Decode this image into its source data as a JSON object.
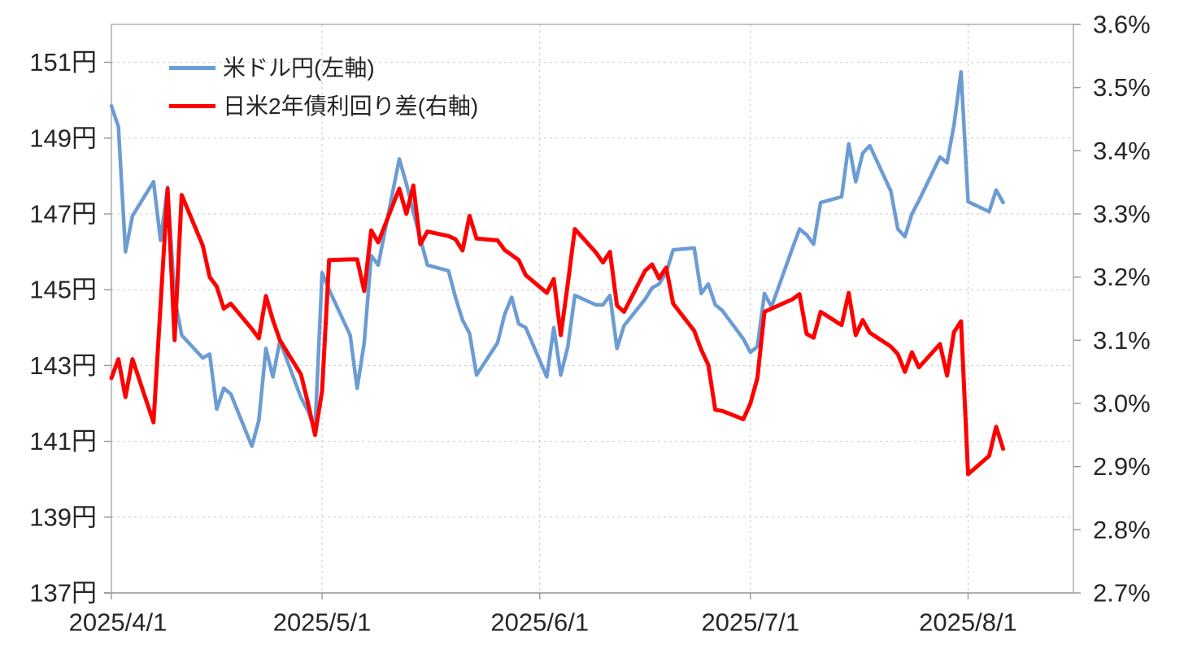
{
  "chart_data": {
    "type": "line",
    "title": "",
    "grid": true,
    "legend_position": "top-left-inside",
    "x_axis": {
      "tick_labels": [
        "2025/4/1",
        "2025/5/1",
        "2025/6/1",
        "2025/7/1",
        "2025/8/1"
      ],
      "tick_days": [
        0,
        30,
        61,
        91,
        122
      ],
      "total_days": 137,
      "base_date": "2025/4/1"
    },
    "left_axis": {
      "unit": "円",
      "tick_labels": [
        "151円",
        "149円",
        "147円",
        "145円",
        "143円",
        "141円",
        "139円",
        "137円"
      ],
      "tick_values": [
        151,
        149,
        147,
        145,
        143,
        141,
        139,
        137
      ],
      "min": 137,
      "max": 152
    },
    "right_axis": {
      "unit": "%",
      "tick_labels": [
        "3.6%",
        "3.5%",
        "3.4%",
        "3.3%",
        "3.2%",
        "3.1%",
        "3.0%",
        "2.9%",
        "2.8%",
        "2.7%"
      ],
      "tick_values": [
        3.6,
        3.5,
        3.4,
        3.3,
        3.2,
        3.1,
        3.0,
        2.9,
        2.8,
        2.7
      ],
      "min": 2.7,
      "max": 3.6
    },
    "series": [
      {
        "name": "米ドル円(左軸)",
        "axis": "left",
        "color": "#6B9CD3",
        "width": 4.5,
        "points": [
          [
            "4/1",
            149.85
          ],
          [
            "4/2",
            149.3
          ],
          [
            "4/3",
            146.0
          ],
          [
            "4/4",
            146.95
          ],
          [
            "4/7",
            147.85
          ],
          [
            "4/8",
            146.3
          ],
          [
            "4/9",
            147.7
          ],
          [
            "4/10",
            144.8
          ],
          [
            "4/11",
            143.8
          ],
          [
            "4/14",
            143.2
          ],
          [
            "4/15",
            143.3
          ],
          [
            "4/16",
            141.85
          ],
          [
            "4/17",
            142.4
          ],
          [
            "4/18",
            142.25
          ],
          [
            "4/21",
            140.87
          ],
          [
            "4/22",
            141.55
          ],
          [
            "4/23",
            143.45
          ],
          [
            "4/24",
            142.7
          ],
          [
            "4/25",
            143.65
          ],
          [
            "4/28",
            142.15
          ],
          [
            "4/29",
            141.8
          ],
          [
            "4/30",
            141.3
          ],
          [
            "5/1",
            145.45
          ],
          [
            "5/2",
            145.0
          ],
          [
            "5/5",
            143.8
          ],
          [
            "5/6",
            142.4
          ],
          [
            "5/7",
            143.6
          ],
          [
            "5/8",
            145.9
          ],
          [
            "5/9",
            145.65
          ],
          [
            "5/12",
            148.45
          ],
          [
            "5/13",
            147.8
          ],
          [
            "5/14",
            147.05
          ],
          [
            "5/15",
            146.35
          ],
          [
            "5/16",
            145.65
          ],
          [
            "5/19",
            145.5
          ],
          [
            "5/20",
            144.8
          ],
          [
            "5/21",
            144.2
          ],
          [
            "5/22",
            143.85
          ],
          [
            "5/23",
            142.75
          ],
          [
            "5/26",
            143.6
          ],
          [
            "5/27",
            144.35
          ],
          [
            "5/28",
            144.8
          ],
          [
            "5/29",
            144.1
          ],
          [
            "5/30",
            144.0
          ],
          [
            "6/2",
            142.7
          ],
          [
            "6/3",
            144.0
          ],
          [
            "6/4",
            142.75
          ],
          [
            "6/5",
            143.5
          ],
          [
            "6/6",
            144.85
          ],
          [
            "6/9",
            144.6
          ],
          [
            "6/10",
            144.6
          ],
          [
            "6/11",
            144.85
          ],
          [
            "6/12",
            143.45
          ],
          [
            "6/13",
            144.05
          ],
          [
            "6/16",
            144.75
          ],
          [
            "6/17",
            145.05
          ],
          [
            "6/18",
            145.15
          ],
          [
            "6/19",
            145.45
          ],
          [
            "6/20",
            146.05
          ],
          [
            "6/23",
            146.1
          ],
          [
            "6/24",
            144.9
          ],
          [
            "6/25",
            145.15
          ],
          [
            "6/26",
            144.6
          ],
          [
            "6/27",
            144.45
          ],
          [
            "6/30",
            143.7
          ],
          [
            "7/1",
            143.35
          ],
          [
            "7/2",
            143.5
          ],
          [
            "7/3",
            144.9
          ],
          [
            "7/4",
            144.55
          ],
          [
            "7/7",
            146.1
          ],
          [
            "7/8",
            146.6
          ],
          [
            "7/9",
            146.45
          ],
          [
            "7/10",
            146.2
          ],
          [
            "7/11",
            147.3
          ],
          [
            "7/14",
            147.45
          ],
          [
            "7/15",
            148.85
          ],
          [
            "7/16",
            147.85
          ],
          [
            "7/17",
            148.6
          ],
          [
            "7/18",
            148.8
          ],
          [
            "7/21",
            147.6
          ],
          [
            "7/22",
            146.6
          ],
          [
            "7/23",
            146.4
          ],
          [
            "7/24",
            147.0
          ],
          [
            "7/25",
            147.35
          ],
          [
            "7/28",
            148.5
          ],
          [
            "7/29",
            148.35
          ],
          [
            "7/30",
            149.35
          ],
          [
            "7/31",
            150.75
          ],
          [
            "8/1",
            147.32
          ],
          [
            "8/4",
            147.06
          ],
          [
            "8/5",
            147.63
          ],
          [
            "8/6",
            147.3
          ]
        ]
      },
      {
        "name": "日米2年債利回り差(右軸)",
        "axis": "right",
        "color": "#FF0000",
        "width": 5,
        "points": [
          [
            "4/1",
            3.04
          ],
          [
            "4/2",
            3.07
          ],
          [
            "4/3",
            3.01
          ],
          [
            "4/4",
            3.07
          ],
          [
            "4/7",
            2.97
          ],
          [
            "4/8",
            3.155
          ],
          [
            "4/9",
            3.34
          ],
          [
            "4/10",
            3.1
          ],
          [
            "4/11",
            3.33
          ],
          [
            "4/14",
            3.25
          ],
          [
            "4/15",
            3.2
          ],
          [
            "4/16",
            3.185
          ],
          [
            "4/17",
            3.15
          ],
          [
            "4/18",
            3.158
          ],
          [
            "4/21",
            3.118
          ],
          [
            "4/22",
            3.103
          ],
          [
            "4/23",
            3.17
          ],
          [
            "4/24",
            3.132
          ],
          [
            "4/25",
            3.1
          ],
          [
            "4/28",
            3.046
          ],
          [
            "4/29",
            3.0
          ],
          [
            "4/30",
            2.95
          ],
          [
            "5/1",
            3.02
          ],
          [
            "5/2",
            3.227
          ],
          [
            "5/5",
            3.228
          ],
          [
            "5/6",
            3.228
          ],
          [
            "5/7",
            3.178
          ],
          [
            "5/8",
            3.274
          ],
          [
            "5/9",
            3.255
          ],
          [
            "5/12",
            3.34
          ],
          [
            "5/13",
            3.3
          ],
          [
            "5/14",
            3.345
          ],
          [
            "5/15",
            3.252
          ],
          [
            "5/16",
            3.272
          ],
          [
            "5/19",
            3.265
          ],
          [
            "5/20",
            3.26
          ],
          [
            "5/21",
            3.242
          ],
          [
            "5/22",
            3.297
          ],
          [
            "5/23",
            3.261
          ],
          [
            "5/26",
            3.258
          ],
          [
            "5/27",
            3.243
          ],
          [
            "5/28",
            3.235
          ],
          [
            "5/29",
            3.227
          ],
          [
            "5/30",
            3.203
          ],
          [
            "6/2",
            3.175
          ],
          [
            "6/3",
            3.197
          ],
          [
            "6/4",
            3.108
          ],
          [
            "6/5",
            3.19
          ],
          [
            "6/6",
            3.276
          ],
          [
            "6/9",
            3.239
          ],
          [
            "6/10",
            3.223
          ],
          [
            "6/11",
            3.24
          ],
          [
            "6/12",
            3.155
          ],
          [
            "6/13",
            3.145
          ],
          [
            "6/16",
            3.21
          ],
          [
            "6/17",
            3.22
          ],
          [
            "6/18",
            3.198
          ],
          [
            "6/19",
            3.215
          ],
          [
            "6/20",
            3.158
          ],
          [
            "6/23",
            3.115
          ],
          [
            "6/24",
            3.085
          ],
          [
            "6/25",
            3.061
          ],
          [
            "6/26",
            2.99
          ],
          [
            "6/27",
            2.988
          ],
          [
            "6/30",
            2.975
          ],
          [
            "7/1",
            3.0
          ],
          [
            "7/2",
            3.04
          ],
          [
            "7/3",
            3.145
          ],
          [
            "7/4",
            3.15
          ],
          [
            "7/7",
            3.165
          ],
          [
            "7/8",
            3.173
          ],
          [
            "7/9",
            3.11
          ],
          [
            "7/10",
            3.104
          ],
          [
            "7/11",
            3.145
          ],
          [
            "7/14",
            3.124
          ],
          [
            "7/15",
            3.175
          ],
          [
            "7/16",
            3.108
          ],
          [
            "7/17",
            3.132
          ],
          [
            "7/18",
            3.112
          ],
          [
            "7/21",
            3.09
          ],
          [
            "7/22",
            3.078
          ],
          [
            "7/23",
            3.05
          ],
          [
            "7/24",
            3.081
          ],
          [
            "7/25",
            3.057
          ],
          [
            "7/28",
            3.094
          ],
          [
            "7/29",
            3.044
          ],
          [
            "7/30",
            3.113
          ],
          [
            "7/31",
            3.13
          ],
          [
            "8/1",
            2.888
          ],
          [
            "8/4",
            2.917
          ],
          [
            "8/5",
            2.963
          ],
          [
            "8/6",
            2.928
          ]
        ]
      }
    ]
  },
  "colors": {
    "background": "#ffffff",
    "grid": "#c9c9c9",
    "axis_line": "#aeaeae",
    "tick": "#9a9a9a",
    "text": "#262626"
  }
}
